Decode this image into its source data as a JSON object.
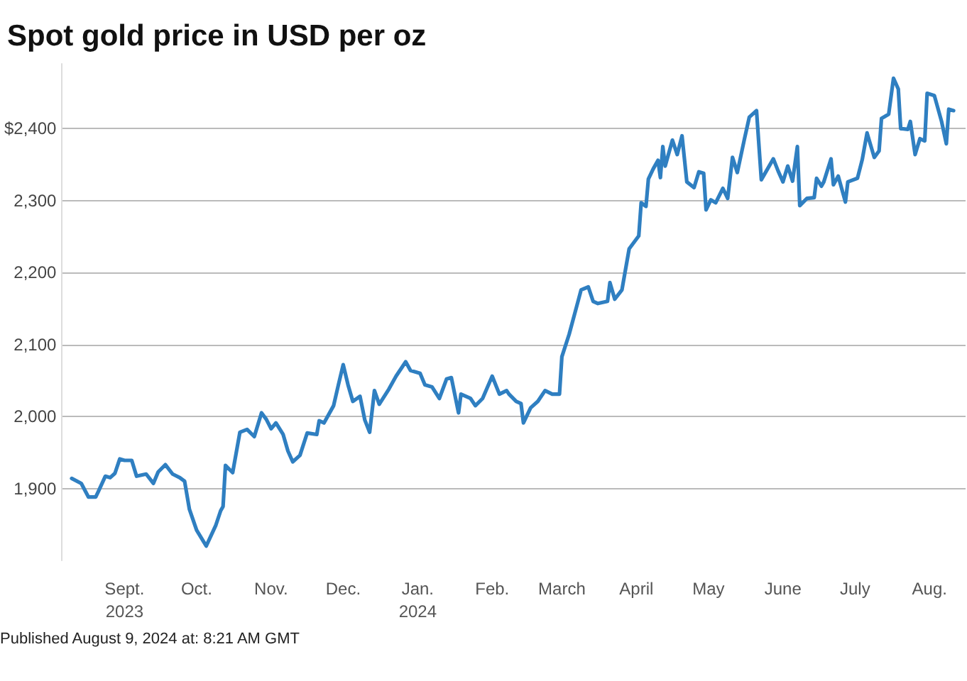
{
  "chart_data": {
    "type": "line",
    "title": "Spot gold price in USD per oz",
    "annotations": [
      "Published August 9, 2024 at: 8:21 AM GMT"
    ],
    "x": [
      "2023-08-10",
      "2023-08-14",
      "2023-08-17",
      "2023-08-20",
      "2023-08-21",
      "2023-08-24",
      "2023-08-26",
      "2023-08-28",
      "2023-08-30",
      "2023-09-01",
      "2023-09-04",
      "2023-09-06",
      "2023-09-10",
      "2023-09-13",
      "2023-09-15",
      "2023-09-18",
      "2023-09-21",
      "2023-09-24",
      "2023-09-26",
      "2023-09-28",
      "2023-10-01",
      "2023-10-05",
      "2023-10-09",
      "2023-10-11",
      "2023-10-12",
      "2023-10-13",
      "2023-10-16",
      "2023-10-19",
      "2023-10-22",
      "2023-10-25",
      "2023-10-28",
      "2023-10-30",
      "2023-11-01",
      "2023-11-03",
      "2023-11-06",
      "2023-11-08",
      "2023-11-10",
      "2023-11-13",
      "2023-11-16",
      "2023-11-20",
      "2023-11-21",
      "2023-11-23",
      "2023-11-27",
      "2023-11-29",
      "2023-12-01",
      "2023-12-03",
      "2023-12-05",
      "2023-12-08",
      "2023-12-10",
      "2023-12-12",
      "2023-12-14",
      "2023-12-16",
      "2023-12-20",
      "2023-12-23",
      "2023-12-27",
      "2023-12-29",
      "2024-01-02",
      "2024-01-04",
      "2024-01-07",
      "2024-01-10",
      "2024-01-13",
      "2024-01-15",
      "2024-01-18",
      "2024-01-19",
      "2024-01-23",
      "2024-01-25",
      "2024-01-28",
      "2024-02-01",
      "2024-02-04",
      "2024-02-07",
      "2024-02-08",
      "2024-02-11",
      "2024-02-13",
      "2024-02-14",
      "2024-02-17",
      "2024-02-20",
      "2024-02-23",
      "2024-02-26",
      "2024-02-29",
      "2024-03-01",
      "2024-03-04",
      "2024-03-07",
      "2024-03-09",
      "2024-03-12",
      "2024-03-14",
      "2024-03-16",
      "2024-03-20",
      "2024-03-21",
      "2024-03-23",
      "2024-03-26",
      "2024-03-29",
      "2024-04-02",
      "2024-04-03",
      "2024-04-05",
      "2024-04-06",
      "2024-04-08",
      "2024-04-10",
      "2024-04-11",
      "2024-04-12",
      "2024-04-13",
      "2024-04-16",
      "2024-04-18",
      "2024-04-20",
      "2024-04-22",
      "2024-04-25",
      "2024-04-27",
      "2024-04-29",
      "2024-04-30",
      "2024-05-02",
      "2024-05-04",
      "2024-05-07",
      "2024-05-09",
      "2024-05-11",
      "2024-05-13",
      "2024-05-16",
      "2024-05-18",
      "2024-05-21",
      "2024-05-23",
      "2024-05-28",
      "2024-05-30",
      "2024-06-01",
      "2024-06-03",
      "2024-06-05",
      "2024-06-07",
      "2024-06-08",
      "2024-06-11",
      "2024-06-14",
      "2024-06-15",
      "2024-06-17",
      "2024-06-18",
      "2024-06-21",
      "2024-06-22",
      "2024-06-24",
      "2024-06-27",
      "2024-06-28",
      "2024-07-02",
      "2024-07-04",
      "2024-07-06",
      "2024-07-09",
      "2024-07-11",
      "2024-07-12",
      "2024-07-15",
      "2024-07-17",
      "2024-07-19",
      "2024-07-20",
      "2024-07-23",
      "2024-07-24",
      "2024-07-26",
      "2024-07-28",
      "2024-07-30",
      "2024-07-31",
      "2024-08-03",
      "2024-08-06",
      "2024-08-08",
      "2024-08-09",
      "2024-08-11"
    ],
    "series": [
      {
        "color": "#2f7fc1",
        "values": [
          1914,
          1907,
          1888,
          1888,
          1895,
          1917,
          1915,
          1921,
          1941,
          1939,
          1939,
          1917,
          1920,
          1907,
          1923,
          1933,
          1920,
          1915,
          1910,
          1871,
          1842,
          1820,
          1849,
          1869,
          1875,
          1932,
          1922,
          1978,
          1982,
          1972,
          2005,
          1996,
          1983,
          1991,
          1975,
          1952,
          1937,
          1946,
          1977,
          1975,
          1994,
          1991,
          2015,
          2044,
          2072,
          2044,
          2021,
          2028,
          1995,
          1978,
          2036,
          2017,
          2038,
          2056,
          2076,
          2064,
          2060,
          2044,
          2041,
          2025,
          2052,
          2054,
          2005,
          2031,
          2025,
          2015,
          2025,
          2056,
          2031,
          2036,
          2031,
          2021,
          2018,
          1991,
          2012,
          2021,
          2036,
          2031,
          2031,
          2083,
          2114,
          2151,
          2176,
          2180,
          2160,
          2157,
          2160,
          2186,
          2163,
          2176,
          2233,
          2251,
          2297,
          2292,
          2330,
          2344,
          2356,
          2332,
          2375,
          2348,
          2384,
          2364,
          2390,
          2326,
          2318,
          2340,
          2338,
          2287,
          2301,
          2297,
          2317,
          2303,
          2360,
          2339,
          2386,
          2416,
          2425,
          2329,
          2358,
          2341,
          2326,
          2348,
          2327,
          2375,
          2293,
          2303,
          2304,
          2331,
          2320,
          2326,
          2358,
          2322,
          2334,
          2298,
          2326,
          2331,
          2357,
          2394,
          2360,
          2369,
          2414,
          2420,
          2470,
          2455,
          2400,
          2399,
          2410,
          2364,
          2386,
          2383,
          2449,
          2446,
          2410,
          2379,
          2427,
          2425
        ]
      }
    ],
    "xlim": [
      "2023-08-06",
      "2024-08-16"
    ],
    "xticks": [
      {
        "value": "2023-09-01",
        "label": "Sept.\n2023"
      },
      {
        "value": "2023-10-01",
        "label": "Oct."
      },
      {
        "value": "2023-11-01",
        "label": "Nov."
      },
      {
        "value": "2023-12-01",
        "label": "Dec."
      },
      {
        "value": "2024-01-01",
        "label": "Jan.\n2024"
      },
      {
        "value": "2024-02-01",
        "label": "Feb."
      },
      {
        "value": "2024-03-01",
        "label": "March"
      },
      {
        "value": "2024-04-01",
        "label": "April"
      },
      {
        "value": "2024-05-01",
        "label": "May"
      },
      {
        "value": "2024-06-01",
        "label": "June"
      },
      {
        "value": "2024-07-01",
        "label": "July"
      },
      {
        "value": "2024-08-01",
        "label": "Aug."
      }
    ],
    "yticks": [
      {
        "value": 1900,
        "label": "1,900"
      },
      {
        "value": 2000,
        "label": "2,000"
      },
      {
        "value": 2100,
        "label": "2,100"
      },
      {
        "value": 2200,
        "label": "2,200"
      },
      {
        "value": 2300,
        "label": "2,300"
      },
      {
        "value": 2400,
        "label": "$2,400"
      }
    ],
    "ylim": [
      1800,
      2490
    ],
    "grid": "y",
    "marker": "none",
    "line_style": "solid"
  }
}
